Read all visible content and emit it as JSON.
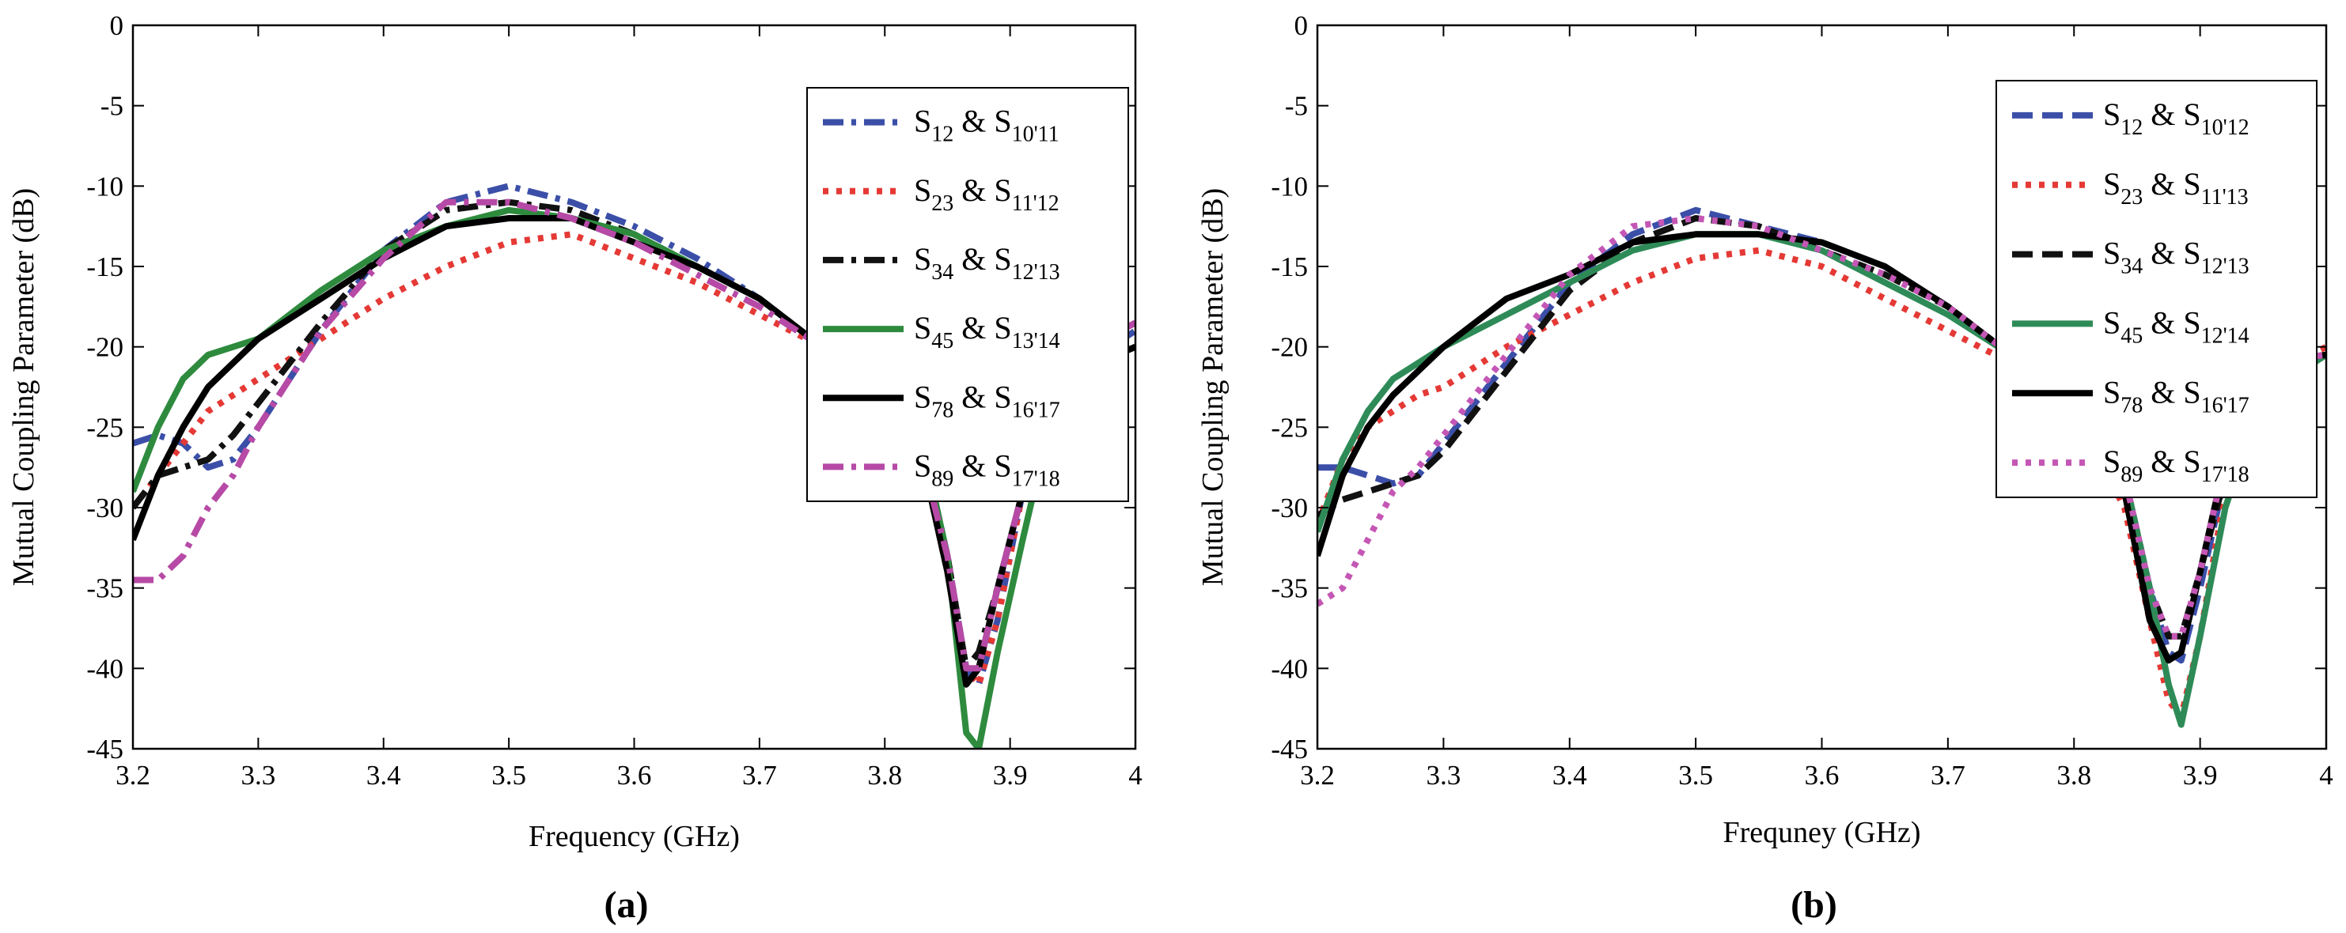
{
  "chart_data": [
    {
      "type": "line",
      "panel_label": "(a)",
      "xlabel": "Frequency (GHz)",
      "ylabel": "Mutual Coupling Parameter (dB)",
      "xlim": [
        3.2,
        4.0
      ],
      "ylim": [
        -45,
        0
      ],
      "xticks": [
        "3.2",
        "3.3",
        "3.4",
        "3.5",
        "3.6",
        "3.7",
        "3.8",
        "3.9",
        "4"
      ],
      "yticks": [
        "0",
        "-5",
        "-10",
        "-15",
        "-20",
        "-25",
        "-30",
        "-35",
        "-40",
        "-45"
      ],
      "legend_position": "top-right",
      "series": [
        {
          "name": "S12 & S10'11",
          "m1": "S",
          "s1": "12",
          "mid": " & S",
          "s2": "10'11",
          "color": "#3b4fa8",
          "dash": "dashdot",
          "x": [
            3.2,
            3.22,
            3.24,
            3.26,
            3.28,
            3.3,
            3.35,
            3.4,
            3.45,
            3.5,
            3.55,
            3.6,
            3.65,
            3.7,
            3.75,
            3.8,
            3.83,
            3.85,
            3.865,
            3.875,
            3.89,
            3.91,
            3.94,
            4.0
          ],
          "y": [
            -26,
            -25.5,
            -26,
            -27.5,
            -27,
            -25,
            -19,
            -14,
            -11,
            -10,
            -11,
            -12.5,
            -14.5,
            -17,
            -20,
            -23,
            -26,
            -33,
            -40,
            -41,
            -37,
            -29,
            -22,
            -19
          ]
        },
        {
          "name": "S23 & S11'12",
          "m1": "S",
          "s1": "23",
          "mid": " & S",
          "s2": "11'12",
          "color": "#e53935",
          "dash": "dot",
          "x": [
            3.2,
            3.22,
            3.24,
            3.26,
            3.28,
            3.3,
            3.35,
            3.4,
            3.45,
            3.5,
            3.55,
            3.6,
            3.65,
            3.7,
            3.75,
            3.8,
            3.83,
            3.85,
            3.865,
            3.875,
            3.89,
            3.91,
            3.94,
            4.0
          ],
          "y": [
            -30,
            -28,
            -26,
            -24,
            -23,
            -22,
            -19.5,
            -17,
            -15,
            -13.5,
            -13,
            -14.5,
            -16,
            -18,
            -20,
            -23,
            -27,
            -34,
            -40,
            -41,
            -37,
            -29,
            -22,
            -20
          ]
        },
        {
          "name": "S34 & S12'13",
          "m1": "S",
          "s1": "34",
          "mid": " & S",
          "s2": "12'13",
          "color": "#111111",
          "dash": "dashdot",
          "x": [
            3.2,
            3.22,
            3.24,
            3.26,
            3.28,
            3.3,
            3.35,
            3.4,
            3.45,
            3.5,
            3.55,
            3.6,
            3.65,
            3.7,
            3.75,
            3.8,
            3.83,
            3.85,
            3.865,
            3.875,
            3.89,
            3.91,
            3.94,
            4.0
          ],
          "y": [
            -30,
            -28,
            -27.5,
            -27,
            -25.5,
            -23.5,
            -18.5,
            -14,
            -11.5,
            -11,
            -11.5,
            -13,
            -15,
            -17,
            -20,
            -23,
            -27,
            -33,
            -40,
            -39,
            -35,
            -29,
            -22,
            -20
          ]
        },
        {
          "name": "S45 & S13'14",
          "m1": "S",
          "s1": "45",
          "mid": " & S",
          "s2": "13'14",
          "color": "#2e8b3e",
          "dash": "solid",
          "x": [
            3.2,
            3.22,
            3.24,
            3.26,
            3.28,
            3.3,
            3.35,
            3.4,
            3.45,
            3.5,
            3.55,
            3.6,
            3.65,
            3.7,
            3.75,
            3.8,
            3.83,
            3.85,
            3.865,
            3.875,
            3.89,
            3.91,
            3.94,
            4.0
          ],
          "y": [
            -29,
            -25,
            -22,
            -20.5,
            -20,
            -19.5,
            -16.5,
            -14,
            -12.5,
            -11.5,
            -12,
            -13,
            -15,
            -17,
            -20,
            -23,
            -26,
            -33,
            -44,
            -45,
            -39,
            -32,
            -22,
            -20
          ]
        },
        {
          "name": "S78 & S16'17",
          "m1": "S",
          "s1": "78",
          "mid": " & S",
          "s2": "16'17",
          "color": "#000000",
          "dash": "solid",
          "x": [
            3.2,
            3.22,
            3.24,
            3.26,
            3.28,
            3.3,
            3.35,
            3.4,
            3.45,
            3.5,
            3.55,
            3.6,
            3.65,
            3.7,
            3.75,
            3.8,
            3.83,
            3.85,
            3.865,
            3.875,
            3.89,
            3.91,
            3.94,
            4.0
          ],
          "y": [
            -32,
            -28,
            -25,
            -22.5,
            -21,
            -19.5,
            -17,
            -14.5,
            -12.5,
            -12,
            -12,
            -13.5,
            -15,
            -17,
            -20,
            -23,
            -27,
            -34,
            -41,
            -40,
            -35,
            -29,
            -22,
            -20
          ]
        },
        {
          "name": "S89 & S17'18",
          "m1": "S",
          "s1": "89",
          "mid": " & S",
          "s2": "17'18",
          "color": "#b64aa6",
          "dash": "dashdot",
          "x": [
            3.2,
            3.22,
            3.24,
            3.26,
            3.28,
            3.3,
            3.35,
            3.4,
            3.45,
            3.5,
            3.55,
            3.6,
            3.65,
            3.7,
            3.75,
            3.8,
            3.83,
            3.85,
            3.865,
            3.875,
            3.89,
            3.91,
            3.94,
            4.0
          ],
          "y": [
            -34.5,
            -34.5,
            -33,
            -30,
            -28,
            -25,
            -19,
            -14.5,
            -11,
            -11,
            -12,
            -13.5,
            -15.5,
            -17.5,
            -20,
            -23,
            -27,
            -33,
            -40,
            -40,
            -35,
            -29,
            -21,
            -18.5
          ]
        }
      ]
    },
    {
      "type": "line",
      "panel_label": "(b)",
      "xlabel": "Frequney (GHz)",
      "ylabel": "Mutual Coupling Parameter (dB)",
      "xlim": [
        3.2,
        4.0
      ],
      "ylim": [
        -45,
        0
      ],
      "xticks": [
        "3.2",
        "3.3",
        "3.4",
        "3.5",
        "3.6",
        "3.7",
        "3.8",
        "3.9",
        "4"
      ],
      "yticks": [
        "0",
        "-5",
        "-10",
        "-15",
        "-20",
        "-25",
        "-30",
        "-35",
        "-40",
        "-45"
      ],
      "legend_position": "top-right",
      "series": [
        {
          "name": "S12 & S10'12",
          "m1": "S",
          "s1": "12",
          "mid": " & S",
          "s2": "10'12",
          "color": "#3b4fa8",
          "dash": "dash",
          "x": [
            3.2,
            3.22,
            3.24,
            3.26,
            3.28,
            3.3,
            3.35,
            3.4,
            3.45,
            3.5,
            3.55,
            3.6,
            3.65,
            3.7,
            3.75,
            3.8,
            3.84,
            3.86,
            3.875,
            3.885,
            3.9,
            3.92,
            3.95,
            4.0
          ],
          "y": [
            -27.5,
            -27.5,
            -28,
            -28.5,
            -28,
            -26,
            -21,
            -16,
            -13,
            -11.5,
            -12.5,
            -13.5,
            -15,
            -17.5,
            -20.5,
            -23,
            -28,
            -35,
            -39,
            -39.5,
            -35,
            -28,
            -21,
            -20.5
          ]
        },
        {
          "name": "S23 & S11'13",
          "m1": "S",
          "s1": "23",
          "mid": " & S",
          "s2": "11'13",
          "color": "#e53935",
          "dash": "dot",
          "x": [
            3.2,
            3.22,
            3.24,
            3.26,
            3.28,
            3.3,
            3.35,
            3.4,
            3.45,
            3.5,
            3.55,
            3.6,
            3.65,
            3.7,
            3.75,
            3.8,
            3.84,
            3.86,
            3.875,
            3.885,
            3.9,
            3.92,
            3.95,
            4.0
          ],
          "y": [
            -31,
            -27,
            -25,
            -24,
            -23,
            -22.5,
            -20,
            -18,
            -16,
            -14.5,
            -14,
            -15,
            -17,
            -19,
            -21,
            -24,
            -30,
            -37,
            -42,
            -43,
            -38,
            -29,
            -22,
            -20
          ]
        },
        {
          "name": "S34 & S12'13",
          "m1": "S",
          "s1": "34",
          "mid": " & S",
          "s2": "12'13",
          "color": "#111111",
          "dash": "dash",
          "x": [
            3.2,
            3.22,
            3.24,
            3.26,
            3.28,
            3.3,
            3.35,
            3.4,
            3.45,
            3.5,
            3.55,
            3.6,
            3.65,
            3.7,
            3.75,
            3.8,
            3.84,
            3.86,
            3.875,
            3.885,
            3.9,
            3.92,
            3.95,
            4.0
          ],
          "y": [
            -30.5,
            -29.5,
            -29,
            -28.5,
            -28,
            -26.5,
            -21.5,
            -16.5,
            -13.5,
            -12,
            -12.5,
            -14,
            -15.5,
            -17.5,
            -20.5,
            -23.5,
            -28,
            -35,
            -38,
            -38,
            -34,
            -28,
            -21,
            -20.5
          ]
        },
        {
          "name": "S45 & S12'14",
          "m1": "S",
          "s1": "45",
          "mid": " & S",
          "s2": "12'14",
          "color": "#2e8b57",
          "dash": "solid",
          "x": [
            3.2,
            3.22,
            3.24,
            3.26,
            3.28,
            3.3,
            3.35,
            3.4,
            3.45,
            3.5,
            3.55,
            3.6,
            3.65,
            3.7,
            3.75,
            3.8,
            3.84,
            3.86,
            3.875,
            3.885,
            3.9,
            3.92,
            3.95,
            4.0
          ],
          "y": [
            -31.5,
            -27,
            -24,
            -22,
            -21,
            -20,
            -18,
            -16,
            -14,
            -13,
            -13,
            -14,
            -16,
            -18,
            -20.5,
            -23.5,
            -28,
            -35,
            -41,
            -43.5,
            -38,
            -30,
            -23,
            -20.5
          ]
        },
        {
          "name": "S78 & S16'17",
          "m1": "S",
          "s1": "78",
          "mid": " & S",
          "s2": "16'17",
          "color": "#000000",
          "dash": "solid",
          "x": [
            3.2,
            3.22,
            3.24,
            3.26,
            3.28,
            3.3,
            3.35,
            3.4,
            3.45,
            3.5,
            3.55,
            3.6,
            3.65,
            3.7,
            3.75,
            3.8,
            3.84,
            3.86,
            3.875,
            3.885,
            3.9,
            3.92,
            3.95,
            4.0
          ],
          "y": [
            -33,
            -28,
            -25,
            -23,
            -21.5,
            -20,
            -17,
            -15.5,
            -13.5,
            -13,
            -13,
            -13.5,
            -15,
            -17.5,
            -20.5,
            -23.5,
            -29,
            -37,
            -39.5,
            -39,
            -34,
            -27,
            -21,
            -20.5
          ]
        },
        {
          "name": "S89 & S17'18",
          "m1": "S",
          "s1": "89",
          "mid": " & S",
          "s2": "17'18",
          "color": "#c457b5",
          "dash": "dot",
          "x": [
            3.2,
            3.22,
            3.24,
            3.26,
            3.28,
            3.3,
            3.35,
            3.4,
            3.45,
            3.5,
            3.55,
            3.6,
            3.65,
            3.7,
            3.75,
            3.8,
            3.84,
            3.86,
            3.875,
            3.885,
            3.9,
            3.92,
            3.95,
            4.0
          ],
          "y": [
            -36,
            -35,
            -32,
            -29,
            -27.5,
            -25.5,
            -20.5,
            -15.5,
            -12.5,
            -12,
            -12.5,
            -14,
            -15.5,
            -17.5,
            -20.5,
            -23,
            -28,
            -35,
            -38,
            -38,
            -34,
            -27,
            -21,
            -20.5
          ]
        }
      ]
    }
  ]
}
